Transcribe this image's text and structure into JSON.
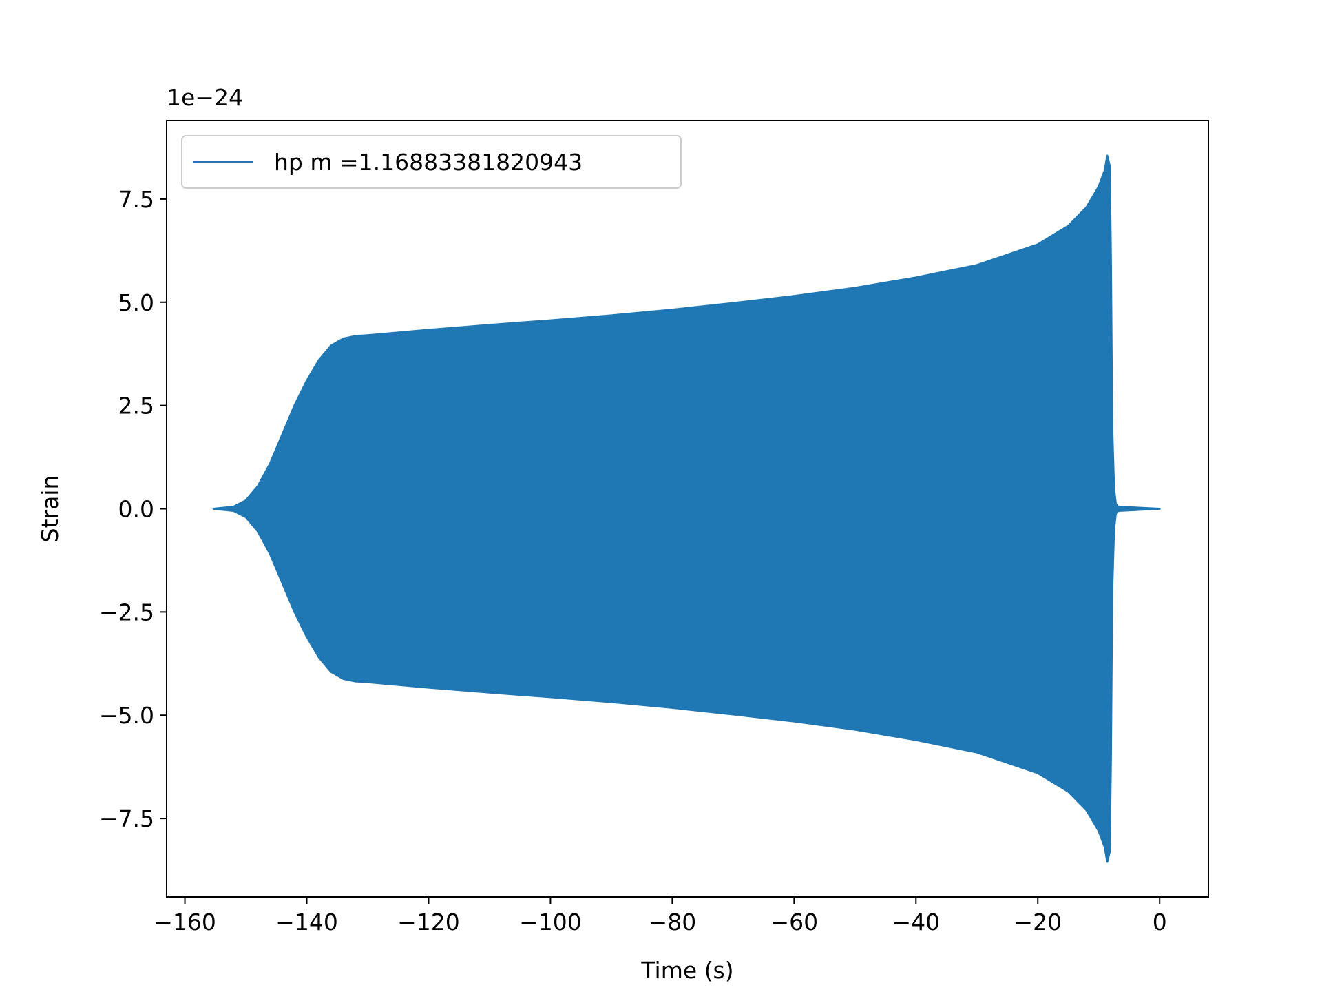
{
  "chart_data": {
    "type": "line",
    "xlabel": "Time (s)",
    "ylabel": "Strain",
    "offset_label": "1e−24",
    "y_scale_factor": 1e-24,
    "xlim": [
      -163,
      8
    ],
    "ylim": [
      -9.4,
      9.4
    ],
    "xticks": [
      -160,
      -140,
      -120,
      -100,
      -80,
      -60,
      -40,
      -20,
      0
    ],
    "xtick_labels": [
      "−160",
      "−140",
      "−120",
      "−100",
      "−80",
      "−60",
      "−40",
      "−20",
      "0"
    ],
    "yticks": [
      7.5,
      5.0,
      2.5,
      0.0,
      -2.5,
      -5.0,
      -7.5
    ],
    "ytick_labels": [
      "7.5",
      "5.0",
      "2.5",
      "0.0",
      "−2.5",
      "−5.0",
      "−7.5"
    ],
    "grid": false,
    "legend_position": "top-left",
    "series": [
      {
        "name": "hp m =1.16883381820943",
        "color": "#1f77b4",
        "envelope": {
          "t": [
            -155.3,
            -152,
            -150,
            -148,
            -146,
            -144,
            -142,
            -140,
            -138,
            -136,
            -134,
            -132,
            -130,
            -120,
            -110,
            -100,
            -90,
            -80,
            -70,
            -60,
            -50,
            -40,
            -30,
            -20,
            -15,
            -12,
            -10,
            -9,
            -8.6,
            -8.2,
            -8.0,
            -7.8,
            -7.5,
            -7.2,
            -6.8,
            0
          ],
          "upper": [
            0.0,
            0.05,
            0.2,
            0.55,
            1.1,
            1.8,
            2.5,
            3.1,
            3.6,
            3.95,
            4.12,
            4.18,
            4.2,
            4.33,
            4.45,
            4.56,
            4.68,
            4.82,
            4.98,
            5.15,
            5.35,
            5.6,
            5.9,
            6.4,
            6.85,
            7.3,
            7.8,
            8.2,
            8.55,
            8.3,
            6.0,
            2.0,
            0.5,
            0.12,
            0.05,
            0.0
          ],
          "lower": [
            0.0,
            -0.05,
            -0.2,
            -0.55,
            -1.1,
            -1.8,
            -2.5,
            -3.1,
            -3.6,
            -3.95,
            -4.12,
            -4.18,
            -4.2,
            -4.33,
            -4.45,
            -4.56,
            -4.68,
            -4.82,
            -4.98,
            -5.15,
            -5.35,
            -5.6,
            -5.9,
            -6.4,
            -6.85,
            -7.3,
            -7.8,
            -8.2,
            -8.55,
            -8.3,
            -6.0,
            -2.0,
            -0.5,
            -0.12,
            -0.05,
            0.0
          ]
        }
      }
    ]
  }
}
